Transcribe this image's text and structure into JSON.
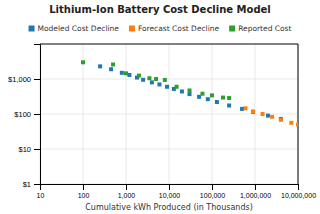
{
  "chart_data": {
    "type": "scatter",
    "title": "Lithium-Ion Battery Cost Decline Model",
    "xlabel": "Cumulative kWh Produced (in Thousands)",
    "log": true,
    "grid": true,
    "legend": "top",
    "marker": "square",
    "series": [
      {
        "name": "Modeled Cost Decline",
        "x": [
          250,
          450,
          800,
          1200,
          1800,
          2500,
          4000,
          6000,
          9000,
          13000,
          20000,
          30000,
          50000,
          80000,
          130000,
          250000,
          500000,
          900000,
          2000000,
          4000000
        ],
        "values": [
          2300,
          1900,
          1500,
          1300,
          1100,
          950,
          800,
          700,
          600,
          520,
          440,
          370,
          310,
          265,
          220,
          175,
          140,
          115,
          90,
          72
        ]
      },
      {
        "name": "Forecast Cost Decline",
        "x": [
          600000,
          900000,
          1500000,
          2500000,
          4000000,
          7000000,
          10000000
        ],
        "values": [
          145,
          118,
          100,
          83,
          68,
          56,
          50
        ]
      },
      {
        "name": "Reported Cost",
        "x": [
          100,
          500,
          1000,
          2000,
          3500,
          5000,
          8000,
          15000,
          30000,
          60000,
          100000,
          180000,
          250000
        ],
        "values": [
          3000,
          2600,
          1450,
          1250,
          1050,
          1000,
          940,
          600,
          470,
          380,
          340,
          295,
          285
        ]
      }
    ],
    "xlim": [
      10,
      10000000
    ],
    "ylim": [
      1,
      10000
    ],
    "xticks": [
      10,
      100,
      {
        "value": 1000,
        "label": "1,000"
      },
      {
        "value": 10000,
        "label": "10,000"
      },
      {
        "value": 100000,
        "label": "100,000"
      },
      {
        "value": 1000000,
        "label": "1,000,000"
      },
      {
        "value": 10000000,
        "label": "10,000,000"
      }
    ],
    "yticks": [
      {
        "value": 1,
        "label": "$1"
      },
      {
        "value": 10,
        "label": "$10"
      },
      {
        "value": 100,
        "label": "$100"
      },
      {
        "value": 1000,
        "label": "$1,000"
      }
    ]
  }
}
